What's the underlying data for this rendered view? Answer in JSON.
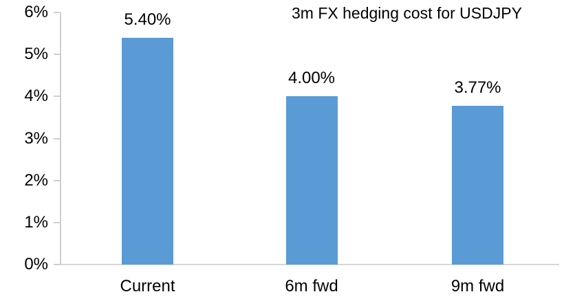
{
  "chart_data": {
    "type": "bar",
    "title": "3m FX hedging cost for USDJPY",
    "categories": [
      "Current",
      "6m fwd",
      "9m fwd"
    ],
    "values": [
      5.4,
      4.0,
      3.77
    ],
    "data_labels": [
      "5.40%",
      "4.00%",
      "3.77%"
    ],
    "xlabel": "",
    "ylabel": "",
    "ylim": [
      0,
      6
    ],
    "y_tick_values": [
      0,
      1,
      2,
      3,
      4,
      5,
      6
    ],
    "y_tick_labels": [
      "0%",
      "1%",
      "2%",
      "3%",
      "4%",
      "5%",
      "6%"
    ],
    "grid": "off",
    "legend": "none",
    "colors": {
      "bar": "#5B9BD5",
      "axis": "#CFCFCF",
      "text": "#000000",
      "background": "#FFFFFF"
    }
  }
}
